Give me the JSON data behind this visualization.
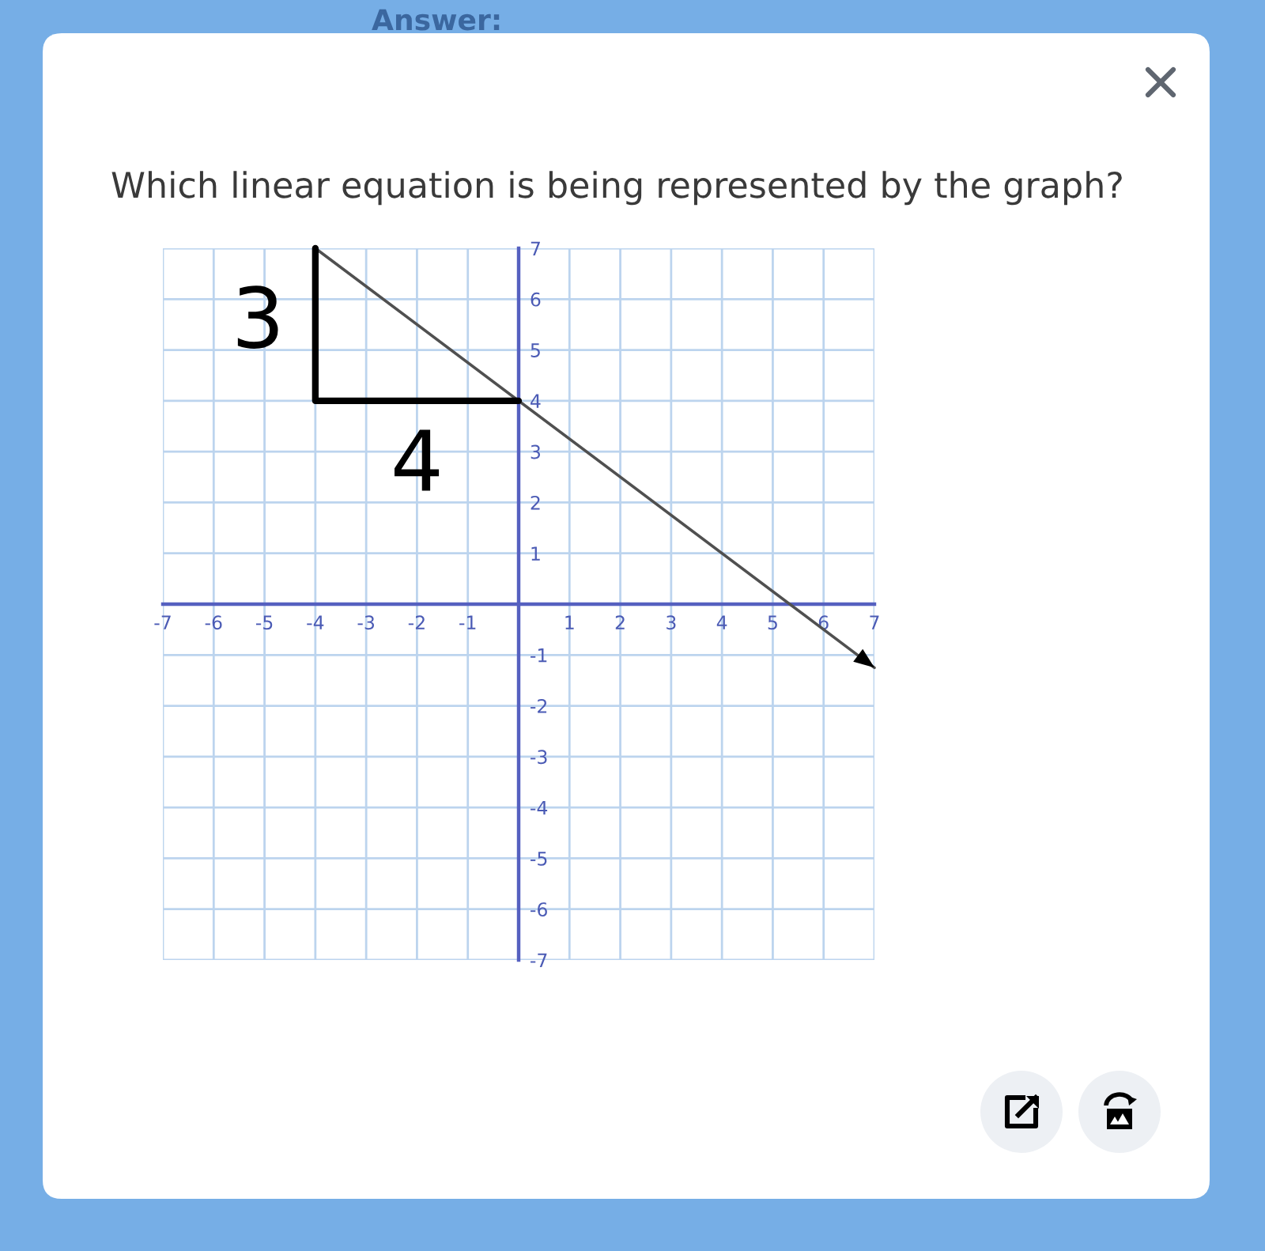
{
  "chart_data": {
    "type": "line",
    "title": "Which linear equation is being represented by the graph?",
    "xlim": [
      -7,
      7
    ],
    "ylim": [
      -7,
      7
    ],
    "xticks": [
      -7,
      -6,
      -5,
      -4,
      -3,
      -2,
      -1,
      1,
      2,
      3,
      4,
      5,
      6,
      7
    ],
    "yticks": [
      -7,
      -6,
      -5,
      -4,
      -3,
      -2,
      -1,
      1,
      2,
      3,
      4,
      5,
      6,
      7
    ],
    "grid": true,
    "series": [
      {
        "color": "#505050",
        "x": [
          -4,
          7
        ],
        "values": [
          7,
          -1.25
        ]
      },
      {
        "color": "#000000",
        "x": [
          -4,
          -4,
          0
        ],
        "values": [
          7,
          4,
          4
        ]
      }
    ],
    "annotations": [
      {
        "text": "3",
        "x": -4,
        "y": 5.5
      },
      {
        "text": "4",
        "x": -2,
        "y": 4
      },
      "Answer:"
    ]
  }
}
